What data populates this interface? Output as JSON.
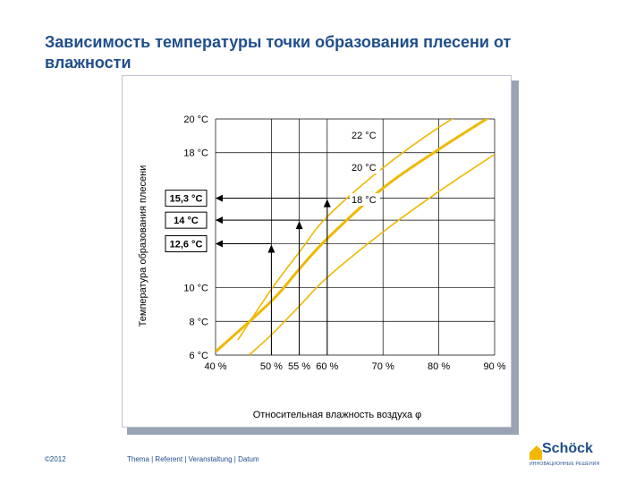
{
  "slide": {
    "title": "Зависимость температуры точки образования плесени от влажности"
  },
  "footer": {
    "copyright": "©2012",
    "meta": "Thema | Referent | Veranstaltung | Datum"
  },
  "logo": {
    "name": "Schöck",
    "tagline": "ИННОВАЦИОННЫЕ РЕШЕНИЯ",
    "icon": "schoeck-house-icon"
  },
  "colors": {
    "title": "#1f4e8c",
    "curve": "#f0b800",
    "highlight_curve": "#f0b800",
    "grid": "#000000",
    "arrow": "#000000"
  },
  "chart_data": {
    "type": "line",
    "xlabel": "Относительная влажность воздуха φ",
    "ylabel": "Температура образования плесени",
    "x_ticks": [
      {
        "value": 40,
        "label": "40 %"
      },
      {
        "value": 50,
        "label": "50 %"
      },
      {
        "value": 55,
        "label": "55 %"
      },
      {
        "value": 60,
        "label": "60 %"
      },
      {
        "value": 70,
        "label": "70 %"
      },
      {
        "value": 80,
        "label": "80 %"
      },
      {
        "value": 90,
        "label": "90 %"
      }
    ],
    "y_ticks": [
      {
        "value": 6,
        "label": "6 °C"
      },
      {
        "value": 8,
        "label": "8 °C"
      },
      {
        "value": 10,
        "label": "10 °C"
      },
      {
        "value": 18,
        "label": "18 °C"
      },
      {
        "value": 20,
        "label": "20 °C"
      }
    ],
    "y_grid": [
      6,
      8,
      10,
      12.6,
      14,
      15.3,
      18,
      20
    ],
    "x_grid": [
      40,
      50,
      55,
      60,
      70,
      80,
      90
    ],
    "xlim": [
      40,
      90
    ],
    "ylim": [
      6,
      20
    ],
    "series": [
      {
        "name": "22 °C",
        "emphasis": false,
        "points": [
          [
            44,
            6.9
          ],
          [
            50,
            9.9
          ],
          [
            55,
            12.1
          ],
          [
            60,
            14.2
          ],
          [
            70,
            17.1
          ],
          [
            80,
            19.5
          ],
          [
            90,
            21.5
          ]
        ]
      },
      {
        "name": "20 °C",
        "emphasis": true,
        "points": [
          [
            40,
            6.2
          ],
          [
            50,
            9.2
          ],
          [
            55,
            11.1
          ],
          [
            60,
            12.9
          ],
          [
            70,
            15.9
          ],
          [
            80,
            18.2
          ],
          [
            90,
            20.3
          ]
        ]
      },
      {
        "name": "18 °C",
        "emphasis": false,
        "points": [
          [
            46,
            6.0
          ],
          [
            50,
            7.2
          ],
          [
            55,
            8.9
          ],
          [
            60,
            10.6
          ],
          [
            70,
            13.3
          ],
          [
            80,
            15.7
          ],
          [
            90,
            17.9
          ]
        ]
      }
    ],
    "markers": [
      {
        "x": 50,
        "y": 12.6,
        "label": "12,6 °C"
      },
      {
        "x": 55,
        "y": 14,
        "label": "14 °C"
      },
      {
        "x": 60,
        "y": 15.3,
        "label": "15,3 °C"
      }
    ]
  }
}
